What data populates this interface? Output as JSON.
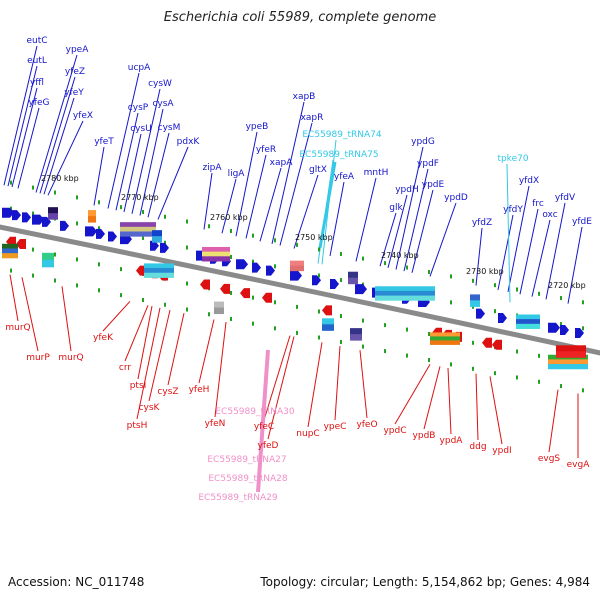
{
  "title": "Escherichia coli 55989, complete genome",
  "accession": "Accession: NC_011748",
  "topology": "Topology: circular; Length: 5,154,862 bp; Genes: 4,984",
  "colors": {
    "forward": "#1515cc",
    "reverse": "#dd1111",
    "trna_fwd": "#33c8e6",
    "trna_rev": "#f090c8",
    "backbone": "#8a8a8a",
    "tick": "#22a022"
  },
  "kbp_ticks": [
    "2720 kbp",
    "2730 kbp",
    "2740 kbp",
    "2750 kbp",
    "2760 kbp",
    "2770 kbp",
    "2780 kbp"
  ],
  "forward_genes": [
    "eutC",
    "eutL",
    "yffl",
    "yfeG",
    "ypeA",
    "yfeZ",
    "yfeY",
    "yfeX",
    "yfeT",
    "ucpA",
    "cysP",
    "cysU",
    "cysW",
    "cysA",
    "cysM",
    "pdxK",
    "zipA",
    "ligA",
    "ypeB",
    "yfeR",
    "xapA",
    "xapB",
    "xapR",
    "gltX",
    "yfeA",
    "mntH",
    "glk",
    "ypdH",
    "ypdG",
    "ypdF",
    "ypdE",
    "ypdD",
    "yfdZ",
    "yfdY",
    "yfdX",
    "frc",
    "oxc",
    "yfdV",
    "yfdE"
  ],
  "forward_trna": [
    "EC55989_tRNA74",
    "EC55989_tRNA75",
    "tpke70"
  ],
  "reverse_genes": [
    "murQ",
    "murP",
    "murQ",
    "yfeK",
    "crr",
    "ptsI",
    "ptsH",
    "cysK",
    "cysZ",
    "yfeH",
    "yfeN",
    "yfeC",
    "yfeD",
    "nupC",
    "ypeC",
    "yfeO",
    "ypdC",
    "ypdB",
    "ypdA",
    "ddg",
    "ypdI",
    "evgS",
    "evgA"
  ],
  "reverse_trna": [
    "EC55989_tRNA30",
    "EC55989_tRNA27",
    "EC55989_tRNA28",
    "EC55989_tRNA29"
  ]
}
